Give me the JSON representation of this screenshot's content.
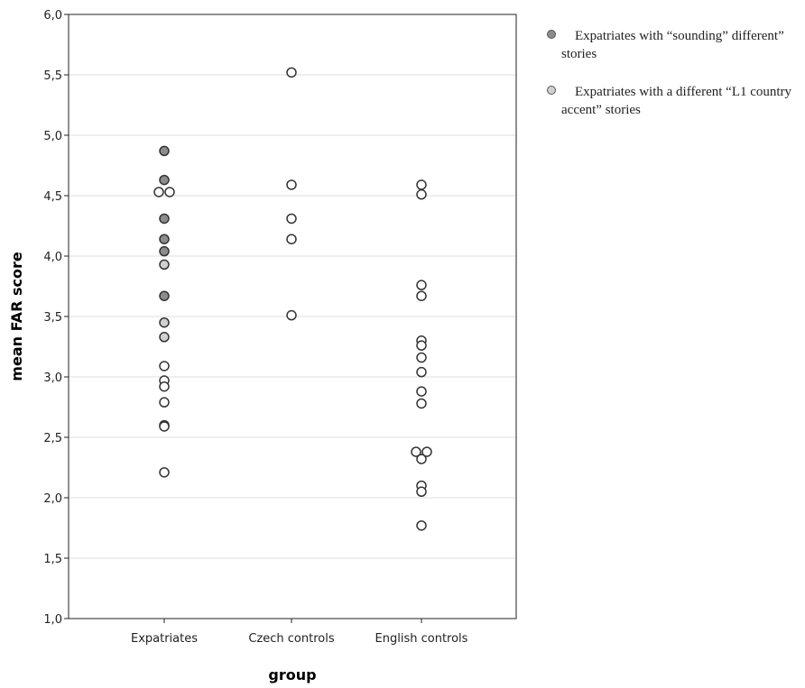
{
  "chart_data": {
    "type": "scatter",
    "title": "",
    "xlabel": "group",
    "ylabel": "mean FAR score",
    "categories": [
      "Expatriates",
      "Czech controls",
      "English controls"
    ],
    "ylim": [
      1.0,
      6.0
    ],
    "yticks": [
      "1,0",
      "1,5",
      "2,0",
      "2,5",
      "3,0",
      "3,5",
      "4,0",
      "4,5",
      "5,0",
      "5,5",
      "6,0"
    ],
    "grid": "horizontal",
    "legend_position": "right",
    "series": [
      {
        "name": "Expatriates with “sounding” different” stories",
        "color": "#8c8c8c",
        "points": [
          {
            "category": "Expatriates",
            "y": 4.87
          },
          {
            "category": "Expatriates",
            "y": 4.63
          },
          {
            "category": "Expatriates",
            "y": 4.31
          },
          {
            "category": "Expatriates",
            "y": 4.14
          },
          {
            "category": "Expatriates",
            "y": 4.04
          },
          {
            "category": "Expatriates",
            "y": 3.67
          }
        ]
      },
      {
        "name": "Expatriates with a different “L1 country accent” stories",
        "color": "#d0d0d0",
        "points": [
          {
            "category": "Expatriates",
            "y": 3.93
          },
          {
            "category": "Expatriates",
            "y": 3.45
          },
          {
            "category": "Expatriates",
            "y": 3.33
          }
        ]
      },
      {
        "name": "",
        "color": "#ffffff",
        "points": [
          {
            "category": "Expatriates",
            "y": 4.53,
            "offset": -1
          },
          {
            "category": "Expatriates",
            "y": 4.53,
            "offset": 1
          },
          {
            "category": "Expatriates",
            "y": 3.09
          },
          {
            "category": "Expatriates",
            "y": 2.97
          },
          {
            "category": "Expatriates",
            "y": 2.92
          },
          {
            "category": "Expatriates",
            "y": 2.79
          },
          {
            "category": "Expatriates",
            "y": 2.6
          },
          {
            "category": "Expatriates",
            "y": 2.59
          },
          {
            "category": "Expatriates",
            "y": 2.21
          },
          {
            "category": "Czech controls",
            "y": 5.52
          },
          {
            "category": "Czech controls",
            "y": 4.59
          },
          {
            "category": "Czech controls",
            "y": 4.31
          },
          {
            "category": "Czech controls",
            "y": 4.14
          },
          {
            "category": "Czech controls",
            "y": 3.51
          },
          {
            "category": "English controls",
            "y": 4.59
          },
          {
            "category": "English controls",
            "y": 4.51
          },
          {
            "category": "English controls",
            "y": 3.76
          },
          {
            "category": "English controls",
            "y": 3.67
          },
          {
            "category": "English controls",
            "y": 3.3
          },
          {
            "category": "English controls",
            "y": 3.26
          },
          {
            "category": "English controls",
            "y": 3.16
          },
          {
            "category": "English controls",
            "y": 3.04
          },
          {
            "category": "English controls",
            "y": 2.88
          },
          {
            "category": "English controls",
            "y": 2.78
          },
          {
            "category": "English controls",
            "y": 2.38,
            "offset": -1
          },
          {
            "category": "English controls",
            "y": 2.38,
            "offset": 1
          },
          {
            "category": "English controls",
            "y": 2.32
          },
          {
            "category": "English controls",
            "y": 2.1
          },
          {
            "category": "English controls",
            "y": 2.05
          },
          {
            "category": "English controls",
            "y": 1.77
          }
        ]
      }
    ]
  },
  "legend": {
    "items": [
      {
        "label": "Expatriates with “sounding” different” stories",
        "color": "#8c8c8c"
      },
      {
        "label": "Expatriates with a different “L1 country accent” stories",
        "color": "#d0d0d0"
      }
    ]
  }
}
